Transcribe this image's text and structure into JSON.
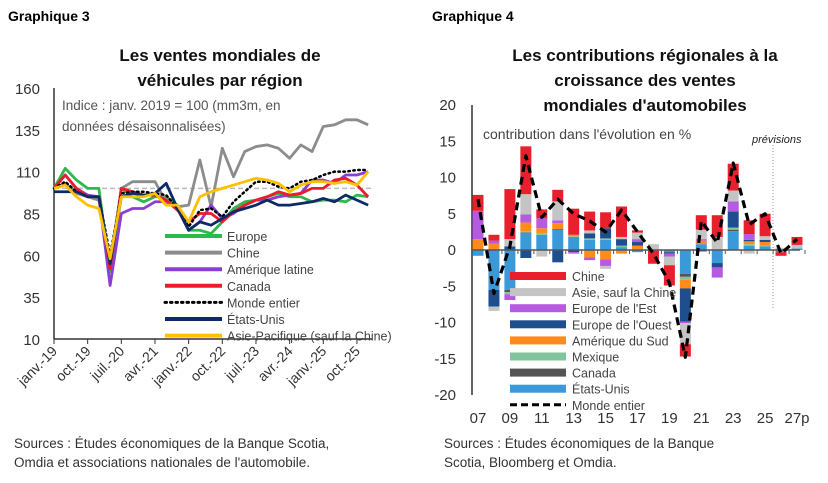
{
  "chart_data": [
    {
      "type": "line",
      "label": "Graphique 3",
      "title": "Les ventes mondiales de véhicules par région",
      "subtitle": "Indice : janv. 2019 = 100 (mm3m, en données désaisonnalisées)",
      "source": "Sources : Études économiques de la Banque Scotia, Omdia et associations nationales de l'automobile.",
      "source_lines": [
        "Sources : Études économiques de la Banque Scotia,",
        "Omdia et associations nationales de l'automobile."
      ],
      "subtitle_lines": [
        "Indice : janv. 2019 = 100 (mm3m, en",
        "données désaisonnalisées)"
      ],
      "title_lines": [
        "Les ventes mondiales de",
        "véhicules par région"
      ],
      "ylim": [
        10,
        160
      ],
      "yticks": [
        10,
        35,
        60,
        85,
        110,
        135,
        160
      ],
      "reference_line": 100,
      "xtick_labels": [
        "janv.-19",
        "oct.-19",
        "juil.-20",
        "avr.-21",
        "janv.-22",
        "oct.-22",
        "juil.-23",
        "avr.-24",
        "janv.-25",
        "oct.-25"
      ],
      "x": [
        "2019-01",
        "2019-04",
        "2019-07",
        "2019-10",
        "2020-01",
        "2020-04",
        "2020-07",
        "2020-10",
        "2021-01",
        "2021-04",
        "2021-07",
        "2021-10",
        "2022-01",
        "2022-04",
        "2022-07",
        "2022-10",
        "2023-01",
        "2023-04",
        "2023-07",
        "2023-10",
        "2024-01",
        "2024-04",
        "2024-07",
        "2024-10",
        "2025-01",
        "2025-04",
        "2025-07",
        "2025-10",
        "2026-01"
      ],
      "legend_position": "bottom-right inside",
      "series": [
        {
          "name": "Europe",
          "color": "#2db84b",
          "style": "solid",
          "values": [
            100,
            112,
            105,
            100,
            100,
            50,
            100,
            95,
            92,
            95,
            95,
            90,
            75,
            75,
            73,
            80,
            88,
            92,
            93,
            95,
            97,
            95,
            95,
            92,
            93,
            93,
            92,
            96,
            95
          ]
        },
        {
          "name": "Chine",
          "color": "#8c8c8c",
          "style": "solid",
          "values": [
            100,
            103,
            97,
            95,
            93,
            55,
            100,
            104,
            104,
            104,
            92,
            89,
            90,
            117,
            89,
            124,
            107,
            122,
            125,
            126,
            124,
            118,
            126,
            122,
            137,
            138,
            141,
            141,
            138
          ]
        },
        {
          "name": "Amérique latine",
          "color": "#8a3fd1",
          "style": "solid",
          "values": [
            100,
            108,
            100,
            96,
            95,
            42,
            85,
            88,
            88,
            92,
            92,
            88,
            75,
            80,
            90,
            82,
            85,
            90,
            93,
            93,
            95,
            96,
            97,
            105,
            105,
            103,
            108,
            108,
            110
          ]
        },
        {
          "name": "Canada",
          "color": "#ec1c2b",
          "style": "solid",
          "values": [
            100,
            108,
            100,
            95,
            95,
            52,
            100,
            98,
            96,
            96,
            93,
            87,
            80,
            85,
            85,
            80,
            86,
            90,
            93,
            95,
            98,
            96,
            97,
            100,
            100,
            105,
            106,
            102,
            95
          ]
        },
        {
          "name": "Monde entier",
          "color": "#000000",
          "style": "dotted",
          "values": [
            100,
            104,
            98,
            95,
            95,
            60,
            97,
            98,
            98,
            97,
            96,
            88,
            77,
            87,
            88,
            83,
            92,
            98,
            104,
            104,
            101,
            100,
            104,
            105,
            108,
            110,
            110,
            111,
            111
          ]
        },
        {
          "name": "États-Unis",
          "color": "#0d2a66",
          "style": "solid",
          "values": [
            98,
            98,
            98,
            95,
            95,
            55,
            95,
            97,
            96,
            97,
            103,
            88,
            75,
            80,
            78,
            82,
            86,
            88,
            90,
            93,
            90,
            90,
            91,
            92,
            94,
            92,
            96,
            93,
            90
          ]
        },
        {
          "name": "Asie-Pacifique (sauf la Chine)",
          "color": "#ffc000",
          "style": "solid",
          "values": [
            100,
            102,
            95,
            90,
            88,
            58,
            95,
            95,
            95,
            97,
            90,
            90,
            80,
            95,
            98,
            100,
            102,
            104,
            106,
            105,
            103,
            98,
            102,
            104,
            104,
            103,
            104,
            102,
            110
          ]
        }
      ]
    },
    {
      "type": "bar",
      "stacked": true,
      "label": "Graphique 4",
      "title": "Les contributions régionales à la croissance des ventes mondiales d'automobiles",
      "title_lines": [
        "Les contributions régionales à la",
        "croissance des ventes",
        "mondiales d'automobiles"
      ],
      "subtitle": "contribution dans l'évolution en %",
      "annotation": "prévisions",
      "source_lines": [
        "Sources : Études économiques de la Banque",
        "Scotia, Bloomberg et Omdia."
      ],
      "ylim": [
        -20,
        20
      ],
      "yticks": [
        -20,
        -15,
        -10,
        -5,
        0,
        5,
        10,
        15,
        20
      ],
      "categories": [
        "07",
        "08",
        "09",
        "10",
        "11",
        "12",
        "13",
        "14",
        "15",
        "16",
        "17",
        "18",
        "19",
        "20",
        "21",
        "22",
        "23",
        "24",
        "25",
        "26",
        "27p"
      ],
      "xtick_labels": [
        "07",
        "09",
        "11",
        "13",
        "15",
        "17",
        "19",
        "21",
        "23",
        "25",
        "27p"
      ],
      "series": [
        {
          "name": "États-Unis",
          "color": "#3a9ad9",
          "values": [
            -0.8,
            -5.5,
            -5.5,
            2.3,
            2.1,
            2.8,
            1.8,
            1.4,
            1.4,
            0.4,
            -0.3,
            -0.1,
            -0.3,
            -3.3,
            0.8,
            -1.8,
            2.6,
            0.6,
            0.5,
            -0.3,
            0.2
          ]
        },
        {
          "name": "Canada",
          "color": "#555555",
          "values": [
            0,
            0,
            -0.3,
            0.1,
            0,
            0.1,
            0,
            0,
            0,
            -0.1,
            0,
            0,
            0,
            -0.4,
            0,
            0,
            0.2,
            0,
            0,
            0,
            0
          ]
        },
        {
          "name": "Mexique",
          "color": "#7fc49b",
          "values": [
            0,
            0,
            -0.3,
            0.2,
            0.2,
            0,
            0.1,
            0.2,
            0.2,
            0.2,
            0.1,
            0,
            0,
            -0.4,
            0,
            0,
            0.3,
            0.2,
            0.1,
            0,
            0
          ]
        },
        {
          "name": "Amérique du Sud",
          "color": "#ff8c1a",
          "values": [
            1.5,
            0.9,
            0,
            1.2,
            0.7,
            0.8,
            0.2,
            -1.0,
            -1.3,
            -0.4,
            0.5,
            0,
            0,
            -1.2,
            0.5,
            0,
            0,
            0.4,
            0.5,
            0,
            0
          ]
        },
        {
          "name": "Europe de l'Ouest",
          "color": "#1f4e8c",
          "values": [
            0,
            -2.3,
            0.5,
            -1.1,
            0,
            -1.7,
            -0.3,
            0.7,
            1.4,
            0.9,
            0.5,
            0.1,
            -0.2,
            -4.6,
            -0.2,
            -0.6,
            2.2,
            0.2,
            0.3,
            0,
            0
          ]
        },
        {
          "name": "Europe de l'Est",
          "color": "#b45be0",
          "values": [
            3.9,
            0.4,
            -0.8,
            1.1,
            1.4,
            0.4,
            -0.2,
            -0.4,
            -0.9,
            0,
            0.4,
            0,
            -0.4,
            -0.2,
            0.2,
            -1.4,
            1.4,
            0.8,
            0,
            0,
            0
          ]
        },
        {
          "name": "Asie, sauf la Chine",
          "color": "#c4c4c4",
          "values": [
            0,
            -0.6,
            1.0,
            2.8,
            -0.9,
            2.6,
            0,
            0.4,
            -0.4,
            0.3,
            0.9,
            0.7,
            -1.2,
            -2.9,
            1.3,
            1.8,
            1.5,
            -0.5,
            0.5,
            0.3,
            0.5
          ]
        },
        {
          "name": "Chine",
          "color": "#e8202e",
          "values": [
            2.2,
            0.8,
            6.9,
            6.6,
            1.2,
            1.6,
            3.6,
            2.6,
            2.2,
            4.2,
            0.3,
            -1.8,
            -2.8,
            -1.7,
            2.0,
            3.0,
            3.7,
            1.9,
            3.1,
            -0.5,
            1.1
          ]
        }
      ],
      "total": {
        "name": "Monde entier",
        "color": "#000000",
        "style": "dashed",
        "values": [
          7,
          -6,
          0.5,
          13,
          4.5,
          7,
          5,
          4,
          2.5,
          5.5,
          2.5,
          -0.5,
          -4.5,
          -14.8,
          4,
          1,
          12,
          3.5,
          5,
          -0.5,
          1.5
        ]
      }
    }
  ]
}
